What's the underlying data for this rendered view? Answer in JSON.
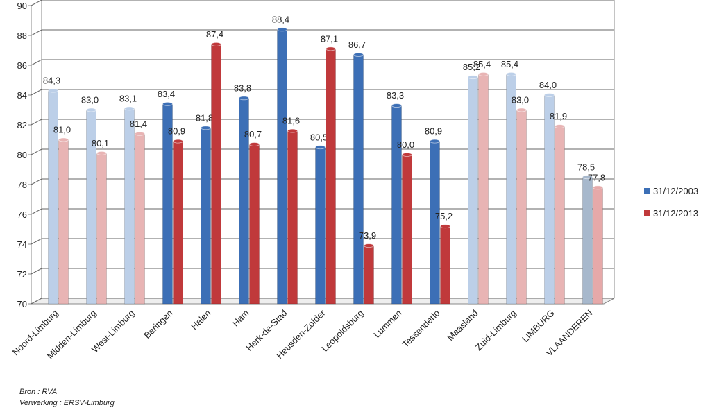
{
  "chart_data": {
    "type": "bar",
    "categories": [
      "Noord-Limburg",
      "Midden-Limburg",
      "West-Limburg",
      "Beringen",
      "Halen",
      "Ham",
      "Herk-de-Stad",
      "Heusden-Zolder",
      "Leopoldsburg",
      "Lummen",
      "Tessenderlo",
      "Maasland",
      "Zuid-Limburg",
      "LIMBURG",
      "VLAANDEREN"
    ],
    "series": [
      {
        "name": "31/12/2003",
        "color": "#3c6fb6",
        "values": [
          84.3,
          83.0,
          83.1,
          83.4,
          81.8,
          83.8,
          88.4,
          80.5,
          86.7,
          83.3,
          80.9,
          85.2,
          85.4,
          84.0,
          78.5
        ],
        "value_labels": [
          "84,3",
          "83,0",
          "83,1",
          "83,4",
          "81,8",
          "83,8",
          "88,4",
          "80,5",
          "86,7",
          "83,3",
          "80,9",
          "85,2",
          "85,4",
          "84,0",
          "78,5"
        ],
        "colors": [
          "#bccfe8",
          "#bccfe8",
          "#bccfe8",
          "#3c6fb6",
          "#3c6fb6",
          "#3c6fb6",
          "#3c6fb6",
          "#3c6fb6",
          "#3c6fb6",
          "#3c6fb6",
          "#3c6fb6",
          "#bccfe8",
          "#bccfe8",
          "#bccfe8",
          "#a7b8cc"
        ]
      },
      {
        "name": "31/12/2013",
        "color": "#c0393b",
        "values": [
          81.0,
          80.1,
          81.4,
          80.9,
          87.4,
          80.7,
          81.6,
          87.1,
          73.9,
          80.0,
          75.2,
          85.4,
          83.0,
          81.9,
          77.8
        ],
        "value_labels": [
          "81,0",
          "80,1",
          "81,4",
          "80,9",
          "87,4",
          "80,7",
          "81,6",
          "87,1",
          "73,9",
          "80,0",
          "75,2",
          "85,4",
          "83,0",
          "81,9",
          "77,8"
        ],
        "colors": [
          "#e8b4b4",
          "#e8b4b4",
          "#e8b4b4",
          "#c0393b",
          "#c0393b",
          "#c0393b",
          "#c0393b",
          "#c0393b",
          "#c0393b",
          "#c0393b",
          "#c0393b",
          "#e8b4b4",
          "#e8b4b4",
          "#e8b4b4",
          "#e6a9a9"
        ]
      }
    ],
    "ylim": [
      70,
      90
    ],
    "yticks": [
      70,
      72,
      74,
      76,
      78,
      80,
      82,
      84,
      86,
      88,
      90
    ],
    "grid": true,
    "legend": "right",
    "source": [
      "Bron : RVA",
      "Verwerking : ERSV-Limburg"
    ]
  }
}
